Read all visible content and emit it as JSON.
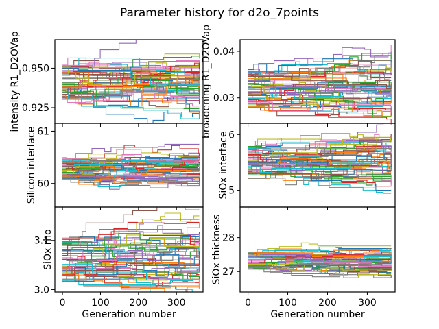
{
  "figure": {
    "title": "Parameter history for d2o_7points"
  },
  "chart_data": [
    {
      "type": "line",
      "panel": "top-left",
      "ylabel": "intensity R1_D2OVap",
      "xlabel": "",
      "xlim": [
        -20,
        370
      ],
      "ylim": [
        0.915,
        0.968
      ],
      "xticks": [
        0,
        100,
        200,
        300
      ],
      "xticklabels": [
        "",
        "",
        "",
        ""
      ],
      "yticks": [
        0.925,
        0.95
      ],
      "yticklabels": [
        "0.925",
        "0.950"
      ],
      "series_count": 60,
      "y_center": 0.9405,
      "y_spread": 0.012,
      "x_range": [
        0,
        360
      ]
    },
    {
      "type": "line",
      "panel": "top-right",
      "ylabel": "broadening R1_D2OVap",
      "xlabel": "",
      "xlim": [
        -20,
        370
      ],
      "ylim": [
        0.0245,
        0.0425
      ],
      "xticks": [
        0,
        100,
        200,
        300
      ],
      "xticklabels": [
        "",
        "",
        "",
        ""
      ],
      "yticks": [
        0.03,
        0.04
      ],
      "yticklabels": [
        "0.03",
        "0.04"
      ],
      "series_count": 60,
      "y_center": 0.032,
      "y_spread": 0.0042,
      "x_range": [
        0,
        360
      ]
    },
    {
      "type": "line",
      "panel": "middle-left",
      "ylabel": "Silicon interface",
      "xlabel": "",
      "xlim": [
        -20,
        370
      ],
      "ylim": [
        59.55,
        61.15
      ],
      "xticks": [
        0,
        100,
        200,
        300
      ],
      "xticklabels": [
        "",
        "",
        "",
        ""
      ],
      "yticks": [
        60,
        61
      ],
      "yticklabels": [
        "60",
        "61"
      ],
      "series_count": 60,
      "y_center": 60.28,
      "y_spread": 0.22,
      "x_range": [
        0,
        360
      ]
    },
    {
      "type": "line",
      "panel": "middle-right",
      "ylabel": "SiOx interface",
      "xlabel": "",
      "xlim": [
        -20,
        370
      ],
      "ylim": [
        4.7,
        6.2
      ],
      "xticks": [
        0,
        100,
        200,
        300
      ],
      "xticklabels": [
        "",
        "",
        "",
        ""
      ],
      "yticks": [
        5,
        6
      ],
      "yticklabels": [
        "5",
        "6"
      ],
      "series_count": 60,
      "y_center": 5.5,
      "y_spread": 0.3,
      "x_range": [
        0,
        360
      ]
    },
    {
      "type": "line",
      "panel": "bottom-left",
      "ylabel": "SiOx rho",
      "xlabel": "Generation number",
      "xlim": [
        -20,
        370
      ],
      "ylim": [
        2.995,
        3.168
      ],
      "xticks": [
        0,
        100,
        200,
        300
      ],
      "xticklabels": [
        "0",
        "100",
        "200",
        "300"
      ],
      "yticks": [
        3.0,
        3.1
      ],
      "yticklabels": [
        "3.0",
        "3.1"
      ],
      "series_count": 60,
      "y_center": 3.06,
      "y_spread": 0.045,
      "x_range": [
        0,
        360
      ]
    },
    {
      "type": "line",
      "panel": "bottom-right",
      "ylabel": "SiOx thickness",
      "xlabel": "Generation number",
      "xlim": [
        -20,
        370
      ],
      "ylim": [
        26.4,
        28.9
      ],
      "xticks": [
        0,
        100,
        200,
        300
      ],
      "xticklabels": [
        "0",
        "100",
        "200",
        "300"
      ],
      "yticks": [
        27,
        28
      ],
      "yticklabels": [
        "27",
        "28"
      ],
      "series_count": 60,
      "y_center": 27.3,
      "y_spread": 0.28,
      "x_range": [
        0,
        360
      ]
    }
  ],
  "palette": [
    "#1f77b4",
    "#ff7f0e",
    "#2ca02c",
    "#d62728",
    "#9467bd",
    "#8c564b",
    "#e377c2",
    "#7f7f7f",
    "#bcbd22",
    "#17becf"
  ]
}
